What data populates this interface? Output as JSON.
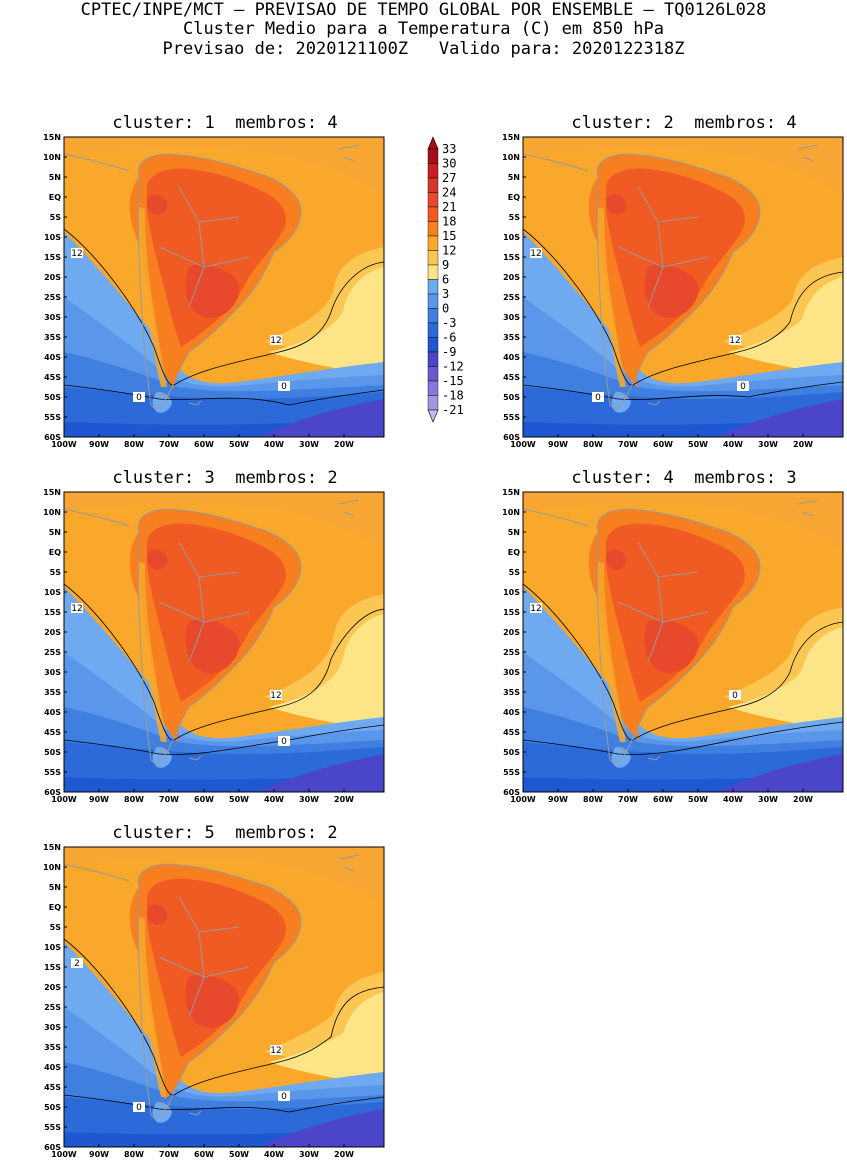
{
  "header": {
    "line1": "CPTEC/INPE/MCT — PREVISAO DE TEMPO GLOBAL POR ENSEMBLE — TQ0126L028",
    "line2": "Cluster Medio para a Temperatura (C) em 850 hPa",
    "line3": "Previsao de: 2020121100Z   Valido para: 2020122318Z"
  },
  "axes": {
    "lat_labels": [
      "15N",
      "10N",
      "5N",
      "EQ",
      "5S",
      "10S",
      "15S",
      "20S",
      "25S",
      "30S",
      "35S",
      "40S",
      "45S",
      "50S",
      "55S",
      "60S"
    ],
    "lon_labels": [
      "100W",
      "90W",
      "80W",
      "70W",
      "60W",
      "50W",
      "40W",
      "30W",
      "20W"
    ]
  },
  "colorbar": {
    "levels": [
      "33",
      "30",
      "27",
      "24",
      "21",
      "18",
      "15",
      "12",
      "9",
      "6",
      "3",
      "0",
      "-3",
      "-6",
      "-9",
      "-12",
      "-15",
      "-18",
      "-21"
    ],
    "colors": [
      "#a50f15",
      "#c9201f",
      "#d9362a",
      "#e8482b",
      "#f05a23",
      "#f77f1f",
      "#f9a82b",
      "#fcc652",
      "#fde587",
      "#6fa9ef",
      "#5a97ea",
      "#3f7fe0",
      "#2c69d9",
      "#1f57d1",
      "#4b46c9",
      "#6a5acd",
      "#8677d9",
      "#a496e3",
      "#c4b8ee"
    ]
  },
  "panels": [
    {
      "cluster_label": "cluster:",
      "cluster": "1",
      "membros_label": "membros:",
      "membros": "4",
      "contour_labels": [
        "12",
        "12",
        "0",
        "0"
      ]
    },
    {
      "cluster_label": "cluster:",
      "cluster": "2",
      "membros_label": "membros:",
      "membros": "4",
      "contour_labels": [
        "12",
        "12",
        "0",
        "0"
      ]
    },
    {
      "cluster_label": "cluster:",
      "cluster": "3",
      "membros_label": "membros:",
      "membros": "2",
      "contour_labels": [
        "12",
        "12",
        "0"
      ]
    },
    {
      "cluster_label": "cluster:",
      "cluster": "4",
      "membros_label": "membros:",
      "membros": "3",
      "contour_labels": [
        "12",
        "0"
      ]
    },
    {
      "cluster_label": "cluster:",
      "cluster": "5",
      "membros_label": "membros:",
      "membros": "2",
      "contour_labels": [
        "2",
        "12",
        "0",
        "0"
      ]
    }
  ]
}
